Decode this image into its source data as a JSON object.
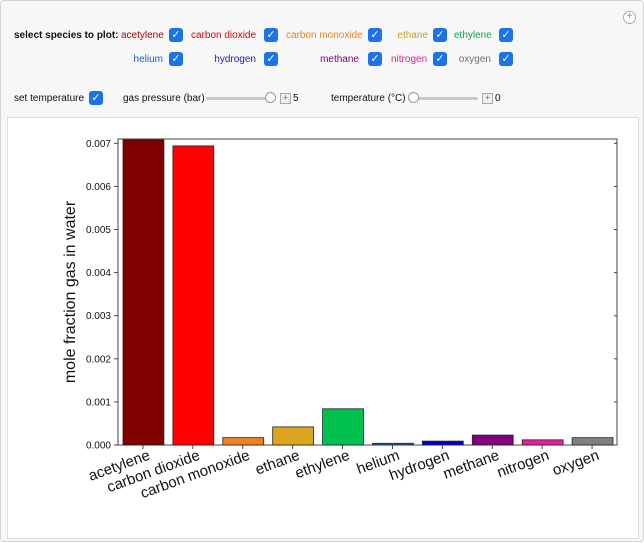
{
  "controls": {
    "select_species_label": "select species to plot:",
    "species_row1": [
      {
        "label": "acetylene",
        "color": "#b00000",
        "checked": true
      },
      {
        "label": "carbon dioxide",
        "color": "#e00000",
        "checked": true
      },
      {
        "label": "carbon monoxide",
        "color": "#f08020",
        "checked": true
      },
      {
        "label": "ethane",
        "color": "#d4a017",
        "checked": true
      },
      {
        "label": "ethylene",
        "color": "#00b050",
        "checked": true
      }
    ],
    "species_row2": [
      {
        "label": "helium",
        "color": "#2060c0",
        "checked": true
      },
      {
        "label": "hydrogen",
        "color": "#2020c0",
        "checked": true
      },
      {
        "label": "methane",
        "color": "#800080",
        "checked": true
      },
      {
        "label": "nitrogen",
        "color": "#e020a0",
        "checked": true
      },
      {
        "label": "oxygen",
        "color": "#707070",
        "checked": true
      }
    ],
    "set_temperature_label": "set temperature",
    "set_temperature_checked": true,
    "gas_pressure_label": "gas pressure (bar)",
    "gas_pressure_value": "5",
    "gas_pressure_fraction": 1.0,
    "temperature_label": "temperature (°C)",
    "temperature_value": "0",
    "temperature_fraction": 0.0
  },
  "chart_data": {
    "type": "bar",
    "title": "",
    "xlabel": "",
    "ylabel": "mole fraction gas in water",
    "ylim": [
      0,
      0.0071
    ],
    "yticks": [
      "0.000",
      "0.001",
      "0.002",
      "0.003",
      "0.004",
      "0.005",
      "0.006",
      "0.007"
    ],
    "categories": [
      "acetylene",
      "carbon dioxide",
      "carbon monoxide",
      "ethane",
      "ethylene",
      "helium",
      "hydrogen",
      "methane",
      "nitrogen",
      "oxygen"
    ],
    "values": [
      0.00708,
      0.00694,
      0.00017,
      0.00042,
      0.00084,
      4e-05,
      9e-05,
      0.00023,
      0.00012,
      0.00017
    ],
    "colors": [
      "#800000",
      "#ff0000",
      "#f08020",
      "#dba520",
      "#00c050",
      "#2060d0",
      "#0000d0",
      "#800080",
      "#e020a0",
      "#808080"
    ],
    "grid": false
  }
}
